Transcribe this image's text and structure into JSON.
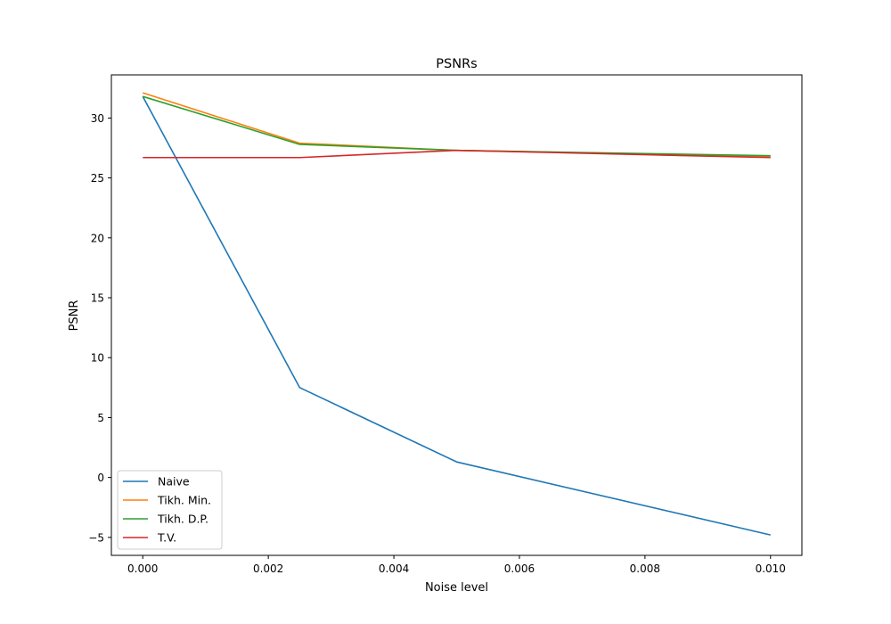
{
  "chart_data": {
    "type": "line",
    "title": "PSNRs",
    "xlabel": "Noise level",
    "ylabel": "PSNR",
    "xlim": [
      -0.0005,
      0.0105
    ],
    "ylim": [
      -6.5,
      33.6
    ],
    "xticks": [
      0.0,
      0.002,
      0.004,
      0.006,
      0.008,
      0.01
    ],
    "xtick_labels": [
      "0.000",
      "0.002",
      "0.004",
      "0.006",
      "0.008",
      "0.010"
    ],
    "yticks": [
      -5,
      0,
      5,
      10,
      15,
      20,
      25,
      30
    ],
    "ytick_labels": [
      "−5",
      "0",
      "5",
      "10",
      "15",
      "20",
      "25",
      "30"
    ],
    "grid": false,
    "legend_position": "lower-left",
    "x": [
      0.0,
      0.0025,
      0.005,
      0.01
    ],
    "series": [
      {
        "name": "Naive",
        "color": "#1f77b4",
        "values": [
          31.8,
          7.5,
          1.3,
          -4.8
        ]
      },
      {
        "name": "Tikh. Min.",
        "color": "#ff7f0e",
        "values": [
          32.1,
          27.9,
          27.3,
          26.8
        ]
      },
      {
        "name": "Tikh. D.P.",
        "color": "#2ca02c",
        "values": [
          31.8,
          27.8,
          27.3,
          26.85
        ]
      },
      {
        "name": "T.V.",
        "color": "#d62728",
        "values": [
          26.7,
          26.7,
          27.3,
          26.7
        ]
      }
    ]
  }
}
